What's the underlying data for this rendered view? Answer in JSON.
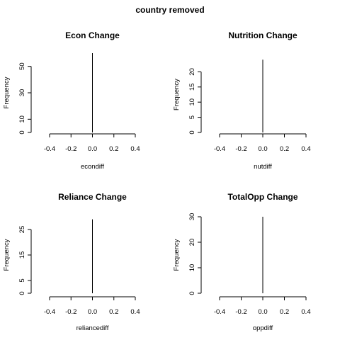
{
  "title": "country removed",
  "chart_data": [
    {
      "type": "bar",
      "title": "Econ Change",
      "xlabel": "econdiff",
      "ylabel": "Frequency",
      "xlim": [
        -0.4,
        0.4
      ],
      "xticks": [
        -0.4,
        -0.2,
        0.0,
        0.2,
        0.4
      ],
      "xtick_labels": [
        "-0.4",
        "-0.2",
        "0.0",
        "0.2",
        "0.4"
      ],
      "ylim": [
        0,
        60
      ],
      "yticks": [
        0,
        10,
        30,
        50
      ],
      "ytick_labels": [
        "0",
        "10",
        "30",
        "50"
      ],
      "bins": [
        {
          "x": 0.0,
          "count": 60
        }
      ]
    },
    {
      "type": "bar",
      "title": "Nutrition Change",
      "xlabel": "nutdiff",
      "ylabel": "Frequency",
      "xlim": [
        -0.4,
        0.4
      ],
      "xticks": [
        -0.4,
        -0.2,
        0.0,
        0.2,
        0.4
      ],
      "xtick_labels": [
        "-0.4",
        "-0.2",
        "0.0",
        "0.2",
        "0.4"
      ],
      "ylim": [
        0,
        25
      ],
      "yticks": [
        0,
        5,
        10,
        15,
        20
      ],
      "ytick_labels": [
        "0",
        "5",
        "10",
        "15",
        "20"
      ],
      "bins": [
        {
          "x": 0.0,
          "count": 24
        }
      ]
    },
    {
      "type": "bar",
      "title": "Reliance Change",
      "xlabel": "reliancediff",
      "ylabel": "Frequency",
      "xlim": [
        -0.4,
        0.4
      ],
      "xticks": [
        -0.4,
        -0.2,
        0.0,
        0.2,
        0.4
      ],
      "xtick_labels": [
        "-0.4",
        "-0.2",
        "0.0",
        "0.2",
        "0.4"
      ],
      "ylim": [
        0,
        30
      ],
      "yticks": [
        0,
        5,
        15,
        25
      ],
      "ytick_labels": [
        "0",
        "5",
        "15",
        "25"
      ],
      "bins": [
        {
          "x": 0.0,
          "count": 29
        }
      ]
    },
    {
      "type": "bar",
      "title": "TotalOpp Change",
      "xlabel": "oppdiff",
      "ylabel": "Frequency",
      "xlim": [
        -0.4,
        0.4
      ],
      "xticks": [
        -0.4,
        -0.2,
        0.0,
        0.2,
        0.4
      ],
      "xtick_labels": [
        "-0.4",
        "-0.2",
        "0.0",
        "0.2",
        "0.4"
      ],
      "ylim": [
        0,
        30
      ],
      "yticks": [
        0,
        10,
        20,
        30
      ],
      "ytick_labels": [
        "0",
        "10",
        "20",
        "30"
      ],
      "bins": [
        {
          "x": 0.0,
          "count": 30
        }
      ]
    }
  ]
}
